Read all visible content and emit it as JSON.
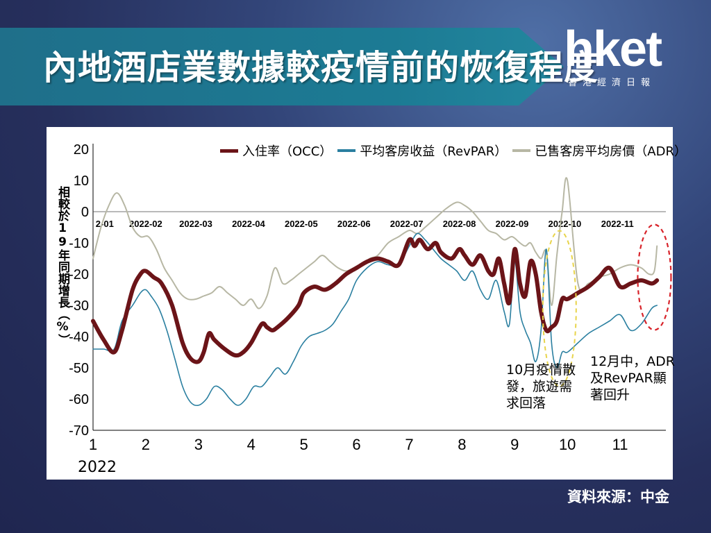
{
  "header": {
    "title": "內地酒店業數據較疫情前的恢復程度",
    "logo_text": "hket",
    "logo_sub": "香港經濟日報"
  },
  "source": "資料來源：中金",
  "chart_data": {
    "type": "line",
    "ylabel": "相較於19年同期增長（%）",
    "ylim": [
      -70,
      20
    ],
    "yticks": [
      20,
      10,
      0,
      -10,
      -20,
      -30,
      -40,
      -50,
      -60,
      -70
    ],
    "xlim": [
      1,
      12
    ],
    "xticks": [
      "1",
      "2",
      "3",
      "4",
      "5",
      "6",
      "7",
      "8",
      "9",
      "10",
      "11"
    ],
    "year_label": "2022",
    "zero_line_labels": [
      "2-01",
      "2022-02",
      "2022-03",
      "2022-04",
      "2022-05",
      "2022-06",
      "2022-07",
      "2022-08",
      "2022-09",
      "2022-10",
      "2022-11"
    ],
    "legend": [
      "入住率（OCC）",
      "平均客房收益（RevPAR）",
      "已售客房平均房價（ADR）"
    ],
    "series": [
      {
        "name": "入住率（OCC）",
        "color": "#6b1418",
        "x": [
          1,
          1.2,
          1.4,
          1.55,
          1.75,
          1.9,
          2.0,
          2.15,
          2.3,
          2.5,
          2.7,
          2.85,
          3.0,
          3.1,
          3.2,
          3.3,
          3.5,
          3.7,
          3.85,
          4.0,
          4.2,
          4.3,
          4.4,
          4.5,
          4.7,
          4.9,
          5.0,
          5.2,
          5.4,
          5.6,
          5.8,
          6.0,
          6.2,
          6.4,
          6.6,
          6.8,
          7.0,
          7.1,
          7.2,
          7.35,
          7.5,
          7.6,
          7.8,
          7.95,
          8.05,
          8.2,
          8.35,
          8.5,
          8.6,
          8.7,
          8.8,
          8.9,
          9.0,
          9.1,
          9.2,
          9.3,
          9.4,
          9.5,
          9.6,
          9.7,
          9.8,
          9.9,
          10.0,
          10.2,
          10.4,
          10.6,
          10.8,
          11.0,
          11.2,
          11.4,
          11.6,
          11.7
        ],
        "values": [
          -35,
          -41,
          -45,
          -38,
          -25,
          -20,
          -19,
          -21,
          -23,
          -30,
          -42,
          -47,
          -48,
          -45,
          -39,
          -41,
          -44,
          -46,
          -45,
          -42,
          -36,
          -37,
          -38,
          -37,
          -34,
          -30,
          -26,
          -24,
          -25,
          -23,
          -20,
          -18,
          -16,
          -15,
          -16,
          -17,
          -9,
          -11,
          -9,
          -12,
          -10,
          -13,
          -15,
          -12,
          -14,
          -17,
          -14,
          -19,
          -20,
          -15,
          -23,
          -29,
          -12,
          -23,
          -27,
          -16,
          -20,
          -32,
          -38,
          -37,
          -35,
          -28,
          -28,
          -26,
          -24,
          -21,
          -18,
          -24,
          -23,
          -22,
          -23,
          -22
        ]
      },
      {
        "name": "平均客房收益（RevPAR）",
        "color": "#2a7fa0",
        "x": [
          1,
          1.2,
          1.4,
          1.55,
          1.75,
          1.9,
          2.0,
          2.1,
          2.25,
          2.4,
          2.55,
          2.7,
          2.85,
          3.0,
          3.15,
          3.3,
          3.45,
          3.6,
          3.75,
          3.9,
          4.05,
          4.2,
          4.35,
          4.5,
          4.65,
          4.8,
          4.95,
          5.1,
          5.25,
          5.4,
          5.55,
          5.7,
          5.85,
          6.0,
          6.2,
          6.4,
          6.6,
          6.8,
          7.0,
          7.15,
          7.3,
          7.45,
          7.6,
          7.75,
          7.9,
          8.05,
          8.2,
          8.35,
          8.5,
          8.65,
          8.8,
          8.9,
          9.0,
          9.1,
          9.2,
          9.3,
          9.4,
          9.5,
          9.6,
          9.7,
          9.8,
          9.9,
          10.0,
          10.2,
          10.4,
          10.6,
          10.8,
          11.0,
          11.2,
          11.4,
          11.6,
          11.7
        ],
        "values": [
          -44,
          -44,
          -44,
          -35,
          -30,
          -26,
          -25,
          -27,
          -31,
          -38,
          -47,
          -56,
          -61,
          -62,
          -60,
          -56,
          -57,
          -60,
          -62,
          -60,
          -56,
          -56,
          -53,
          -50,
          -52,
          -48,
          -43,
          -40,
          -39,
          -38,
          -36,
          -32,
          -28,
          -22,
          -18,
          -16,
          -17,
          -17,
          -11,
          -7,
          -9,
          -12,
          -15,
          -17,
          -19,
          -22,
          -19,
          -25,
          -28,
          -22,
          -32,
          -36,
          -16,
          -32,
          -38,
          -42,
          -48,
          -38,
          -12,
          -42,
          -50,
          -45,
          -45,
          -42,
          -39,
          -37,
          -35,
          -33,
          -38,
          -36,
          -31,
          -30
        ]
      },
      {
        "name": "已售客房平均房價（ADR）",
        "color": "#b7b7a4",
        "x": [
          1,
          1.15,
          1.3,
          1.45,
          1.6,
          1.75,
          1.9,
          2.05,
          2.2,
          2.35,
          2.5,
          2.65,
          2.8,
          2.95,
          3.1,
          3.25,
          3.4,
          3.55,
          3.7,
          3.85,
          4.0,
          4.15,
          4.3,
          4.45,
          4.6,
          4.75,
          4.9,
          5.05,
          5.2,
          5.35,
          5.5,
          5.65,
          5.8,
          5.95,
          6.1,
          6.25,
          6.4,
          6.6,
          6.8,
          7.0,
          7.15,
          7.3,
          7.5,
          7.7,
          7.9,
          8.05,
          8.2,
          8.35,
          8.5,
          8.65,
          8.8,
          8.95,
          9.1,
          9.2,
          9.3,
          9.4,
          9.5,
          9.6,
          9.7,
          9.8,
          9.9,
          10.0,
          10.2,
          10.4,
          10.6,
          10.8,
          11.0,
          11.2,
          11.4,
          11.55,
          11.65,
          11.7
        ],
        "values": [
          -15,
          -5,
          2,
          6,
          2,
          -5,
          -8,
          -8,
          -12,
          -18,
          -22,
          -26,
          -28,
          -28,
          -27,
          -26,
          -24,
          -26,
          -28,
          -30,
          -28,
          -31,
          -27,
          -18,
          -23,
          -22,
          -20,
          -18,
          -16,
          -14,
          -16,
          -18,
          -19,
          -18,
          -17,
          -15,
          -14,
          -10,
          -8,
          -6,
          -7,
          -5,
          -2,
          1,
          3,
          2,
          0,
          -3,
          -6,
          -7,
          -9,
          -8,
          -10,
          -11,
          -10,
          -13,
          -15,
          -13,
          -30,
          -14,
          0,
          10,
          -23,
          -23,
          -21,
          -20,
          -18,
          -17,
          -18,
          -20,
          -19,
          -11
        ]
      }
    ],
    "annotations": [
      {
        "text": "10月疫情散\n發，旅遊需\n求回落"
      },
      {
        "text": "12月中，ADR\n及RevPAR顯\n著回升"
      }
    ]
  }
}
